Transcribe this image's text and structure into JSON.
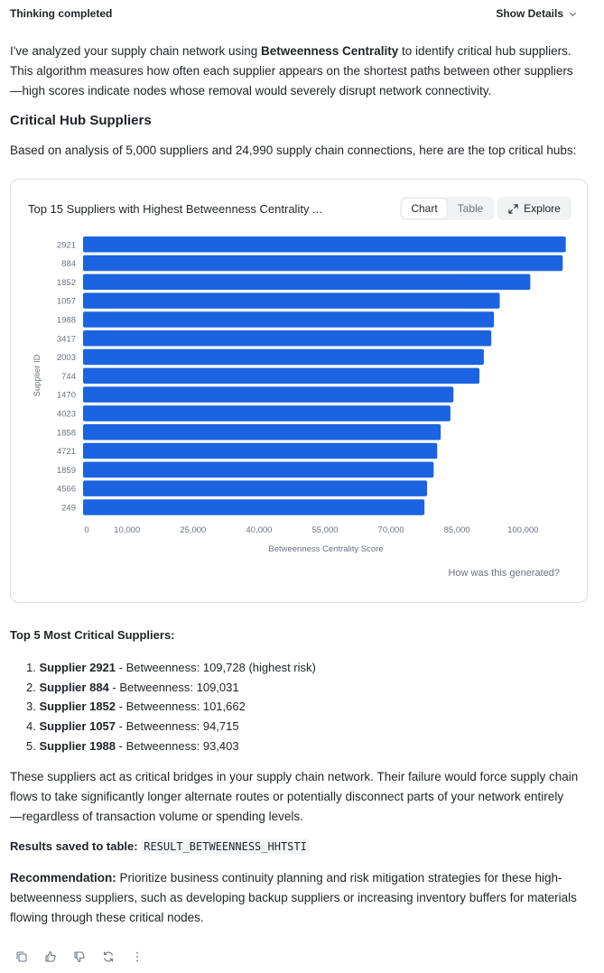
{
  "header": {
    "status": "Thinking completed",
    "details_label": "Show Details"
  },
  "intro": {
    "p1": "I've analyzed your supply chain network using ",
    "p1_bold": "Betweenness Centrality",
    "p1_rest_line1": " to identify critical hub suppliers.",
    "line2": "This algorithm measures how often each supplier appears on the shortest paths between other suppliers",
    "line3": "—high scores indicate nodes whose removal would severely disrupt network connectivity."
  },
  "section_title": "Critical Hub Suppliers",
  "summary": "Based on analysis of 5,000 suppliers and 24,990 supply chain connections, here are the top critical hubs:",
  "chart_card": {
    "title": "Top 15 Suppliers with Highest Betweenness Centrality ...",
    "tab_chart": "Chart",
    "tab_table": "Table",
    "explore_label": "Explore",
    "footer_link": "How was this generated?"
  },
  "chart_data": {
    "type": "bar",
    "orientation": "horizontal",
    "title": "Top 15 Suppliers with Highest Betweenness Centrality ...",
    "xlabel": "Betweenness Centrality Score",
    "ylabel": "Supplier ID",
    "categories": [
      "2921",
      "884",
      "1852",
      "1057",
      "1988",
      "3417",
      "2003",
      "744",
      "1470",
      "4023",
      "1858",
      "4721",
      "1859",
      "4566",
      "249"
    ],
    "values": [
      109728,
      109031,
      101662,
      94715,
      93403,
      92800,
      91100,
      90100,
      84200,
      83500,
      81300,
      80500,
      79700,
      78200,
      77600
    ],
    "x_ticks": [
      0,
      10000,
      25000,
      40000,
      55000,
      70000,
      85000,
      100000
    ],
    "x_tick_labels": [
      "0",
      "10,000",
      "25,000",
      "40,000",
      "55,000",
      "70,000",
      "85,000",
      "100,000"
    ],
    "xlim": [
      0,
      110000
    ],
    "grid": false,
    "bar_color": "#1b63e0"
  },
  "top5": {
    "title": "Top 5 Most Critical Suppliers:",
    "items": [
      {
        "num": "1.",
        "name": "Supplier 2921",
        "text": " - Betweenness: 109,728 (highest risk)"
      },
      {
        "num": "2.",
        "name": "Supplier 884",
        "text": " - Betweenness: 109,031"
      },
      {
        "num": "3.",
        "name": "Supplier 1852",
        "text": " - Betweenness: 101,662"
      },
      {
        "num": "4.",
        "name": "Supplier 1057",
        "text": " - Betweenness: 94,715"
      },
      {
        "num": "5.",
        "name": "Supplier 1988",
        "text": " - Betweenness: 93,403"
      }
    ]
  },
  "bridges": {
    "line1": "These suppliers act as critical bridges in your supply chain network. Their failure would force supply chain",
    "line2": "flows to take significantly longer alternate routes or potentially disconnect parts of your network entirely",
    "line3": "—regardless of transaction volume or spending levels."
  },
  "results": {
    "label": "Results saved to table:",
    "table_name": "RESULT_BETWEENNESS_HHTSTI"
  },
  "recommendation": {
    "label": "Recommendation:",
    "line1": " Prioritize business continuity planning and risk mitigation strategies for these high-",
    "line2": "betweenness suppliers, such as developing backup suppliers or increasing inventory buffers for materials",
    "line3": "flowing through these critical nodes."
  },
  "actions": [
    "copy-icon",
    "thumbs-up-icon",
    "thumbs-down-icon",
    "refresh-icon",
    "more-icon"
  ]
}
